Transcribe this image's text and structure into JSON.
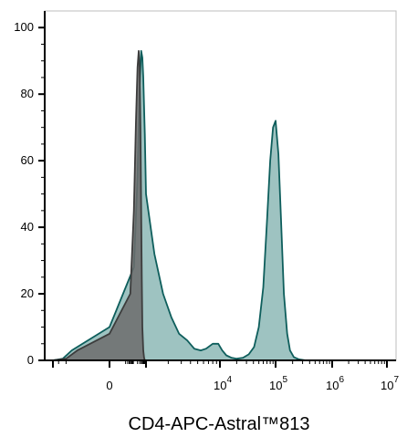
{
  "chart_data": {
    "type": "area",
    "title": "",
    "xlabel": "CD4-APC-Astral™813",
    "ylabel": "",
    "x_scale": "biexponential",
    "ylim": [
      0,
      105
    ],
    "yticks": [
      {
        "value": 0,
        "label": "0"
      },
      {
        "value": 20,
        "label": "20"
      },
      {
        "value": 40,
        "label": "40"
      },
      {
        "value": 60,
        "label": "60"
      },
      {
        "value": 80,
        "label": "80"
      },
      {
        "value": 100,
        "label": "100"
      }
    ],
    "xticks": [
      {
        "value": 0,
        "base": "0",
        "exp": ""
      },
      {
        "value": 10000,
        "base": "10",
        "exp": "4"
      },
      {
        "value": 100000,
        "base": "10",
        "exp": "5"
      },
      {
        "value": 1000000,
        "base": "10",
        "exp": "6"
      },
      {
        "value": 10000000,
        "base": "10",
        "exp": "7"
      }
    ],
    "grid": false,
    "legend": "none",
    "series": [
      {
        "role": "stained",
        "color_fill": "#8db8b6",
        "color_line": "#0e5e5c",
        "points": [
          [
            -1000,
            0
          ],
          [
            -300,
            0.5
          ],
          [
            -100,
            3
          ],
          [
            0,
            10
          ],
          [
            100,
            28
          ],
          [
            200,
            55
          ],
          [
            300,
            82
          ],
          [
            400,
            93
          ],
          [
            500,
            91
          ],
          [
            600,
            85
          ],
          [
            800,
            68
          ],
          [
            1000,
            50
          ],
          [
            1300,
            32
          ],
          [
            1700,
            20
          ],
          [
            2200,
            13
          ],
          [
            2800,
            8
          ],
          [
            3600,
            6
          ],
          [
            4500,
            3.5
          ],
          [
            5500,
            3
          ],
          [
            6500,
            3.5
          ],
          [
            8000,
            5
          ],
          [
            9500,
            5
          ],
          [
            11000,
            3
          ],
          [
            13000,
            1.5
          ],
          [
            16000,
            0.8
          ],
          [
            20000,
            0.5
          ],
          [
            26000,
            0.8
          ],
          [
            33000,
            1.8
          ],
          [
            41000,
            4
          ],
          [
            50000,
            10
          ],
          [
            60000,
            22
          ],
          [
            70000,
            42
          ],
          [
            80000,
            60
          ],
          [
            90000,
            70
          ],
          [
            100000,
            72
          ],
          [
            112000,
            62
          ],
          [
            125000,
            42
          ],
          [
            140000,
            20
          ],
          [
            160000,
            8
          ],
          [
            180000,
            3
          ],
          [
            210000,
            1
          ],
          [
            260000,
            0.3
          ],
          [
            340000,
            0
          ]
        ]
      },
      {
        "role": "unstained-control",
        "color_fill": "#6c6c6c",
        "color_line": "#3c3c3c",
        "points": [
          [
            -1000,
            0
          ],
          [
            -200,
            0.5
          ],
          [
            -50,
            3
          ],
          [
            0,
            8
          ],
          [
            50,
            20
          ],
          [
            100,
            45
          ],
          [
            150,
            72
          ],
          [
            200,
            88
          ],
          [
            250,
            93
          ],
          [
            300,
            88
          ],
          [
            350,
            70
          ],
          [
            400,
            45
          ],
          [
            450,
            24
          ],
          [
            500,
            10
          ],
          [
            600,
            3
          ],
          [
            700,
            0.8
          ],
          [
            800,
            0
          ]
        ]
      }
    ]
  }
}
